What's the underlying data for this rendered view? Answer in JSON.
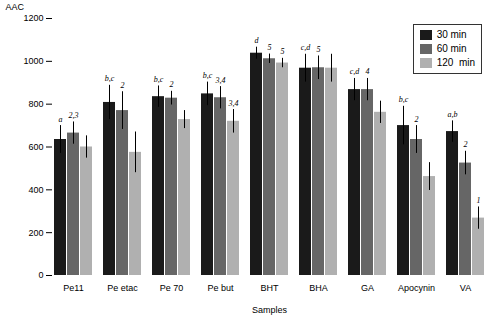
{
  "chart_data": {
    "type": "bar",
    "categories": [
      "Pe11",
      "Pe etac",
      "Pe 70",
      "Pe but",
      "BHT",
      "BHA",
      "GA",
      "Apocynin",
      "VA"
    ],
    "series": [
      {
        "name": "30 min",
        "color": "#1a1a1a",
        "values": [
          635,
          808,
          835,
          848,
          1038,
          968,
          868,
          700,
          672
        ],
        "errors": [
          65,
          80,
          50,
          55,
          28,
          65,
          52,
          90,
          50
        ],
        "annotations": [
          "a",
          "b,c",
          "b,c",
          "b,c",
          "d",
          "c,d",
          "c,d",
          "b,c",
          "a,b"
        ]
      },
      {
        "name": "60 min",
        "color": "#666666",
        "values": [
          665,
          770,
          828,
          830,
          1012,
          970,
          868,
          635,
          525
        ],
        "errors": [
          52,
          88,
          32,
          52,
          22,
          55,
          52,
          65,
          55
        ],
        "annotations": [
          "2,3",
          "2",
          "2",
          "3,4",
          "5",
          "5",
          "4",
          "2",
          "2"
        ]
      },
      {
        "name": "120  min",
        "color": "#b0b0b0",
        "values": [
          600,
          575,
          728,
          720,
          992,
          968,
          762,
          462,
          268
        ],
        "errors": [
          52,
          95,
          42,
          55,
          22,
          65,
          52,
          65,
          52
        ],
        "annotations": [
          null,
          null,
          null,
          "3,4",
          "5",
          null,
          null,
          null,
          "1"
        ]
      }
    ],
    "xlabel": "Samples",
    "ylabel": "AAC",
    "ylim": [
      0,
      1200
    ],
    "yticks": [
      0,
      200,
      400,
      600,
      800,
      1000,
      1200
    ],
    "grid": false,
    "legend": "upper right"
  }
}
